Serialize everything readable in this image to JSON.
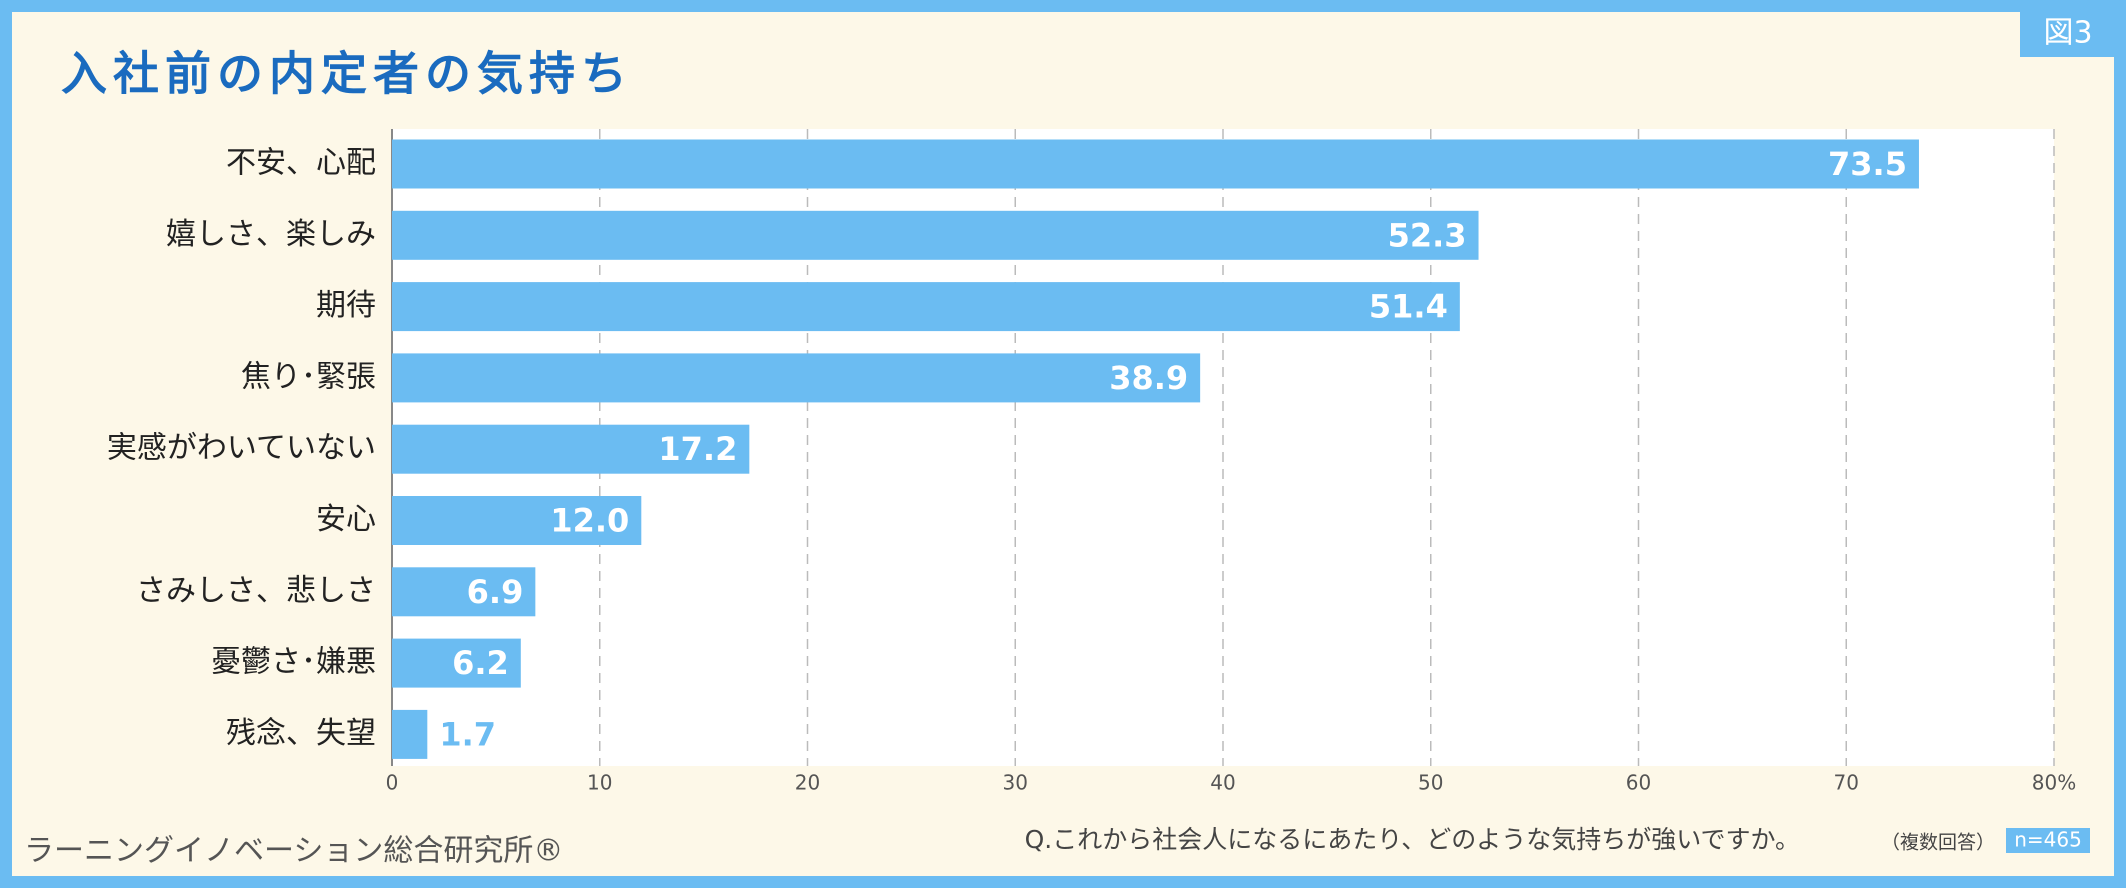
{
  "chart_data": {
    "type": "bar",
    "orientation": "horizontal",
    "title": "入社前の内定者の気持ち",
    "badge": "図3",
    "categories": [
      "不安、心配",
      "嬉しさ、楽しみ",
      "期待",
      "焦り･緊張",
      "実感がわいていない",
      "安心",
      "さみしさ、悲しさ",
      "憂鬱さ･嫌悪",
      "残念、失望"
    ],
    "values": [
      73.5,
      52.3,
      51.4,
      38.9,
      17.2,
      12,
      6.9,
      6.2,
      1.7
    ],
    "value_labels": [
      "73.5",
      "52.3",
      "51.4",
      "38.9",
      "17.2",
      "12.0",
      "6.9",
      "6.2",
      "1.7"
    ],
    "color": "#6bbcf2",
    "xlim": [
      0,
      80
    ],
    "xticks": [
      0,
      10,
      20,
      30,
      40,
      50,
      60,
      70,
      {
        "value": 80,
        "label": "80%"
      }
    ],
    "grid": true,
    "source": "ラーニングイノベーション総合研究所®",
    "question": "Q.これから社会人になるにあたり、どのような気持ちが強いですか。",
    "note": "（複数回答）",
    "sample": "n=465"
  }
}
